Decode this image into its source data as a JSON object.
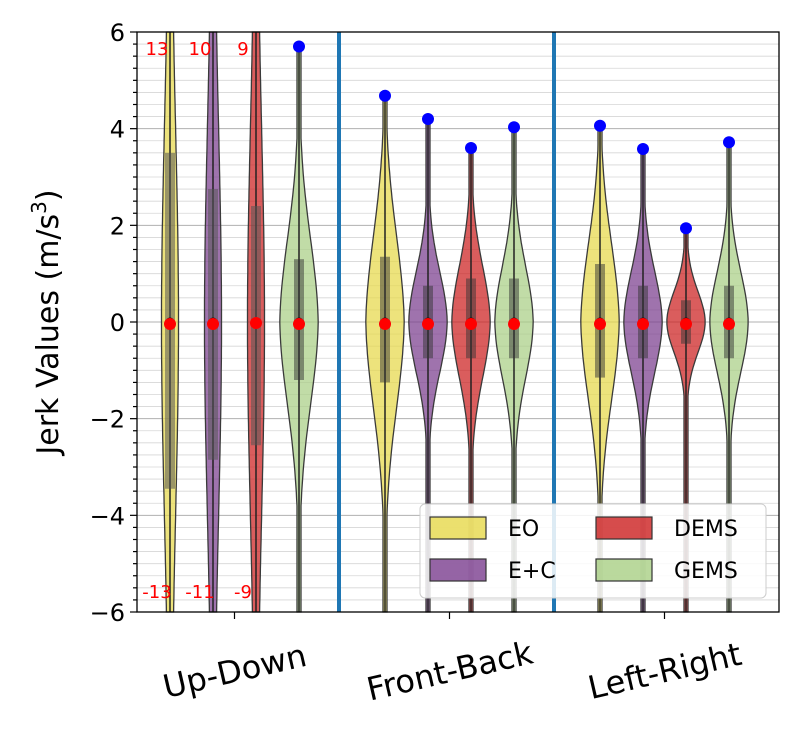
{
  "chart_data": {
    "type": "violin",
    "ylabel": "Jerk Values (m/s³)",
    "ylim": [
      -6,
      6
    ],
    "yticks": [
      -6,
      -4,
      -2,
      0,
      2,
      4,
      6
    ],
    "yticks_minor_step": 0.25,
    "grid": true,
    "categories": [
      "Up-Down",
      "Front-Back",
      "Left-Right"
    ],
    "legend": {
      "placement": "lower-right",
      "columns": 2
    },
    "series": [
      {
        "name": "EO",
        "color": "#e6d84a"
      },
      {
        "name": "E+C",
        "color": "#7a3d8e"
      },
      {
        "name": "DEMS",
        "color": "#cc1f1f"
      },
      {
        "name": "GEMS",
        "color": "#a9cf85"
      }
    ],
    "groups": [
      {
        "category": "Up-Down",
        "violins": [
          {
            "series": "EO",
            "q1": -3.45,
            "q3": 3.5,
            "mean": 0.0,
            "median": 0.0,
            "outlier_max": null,
            "dense": true,
            "clip_top": "13",
            "clip_bottom": "-13"
          },
          {
            "series": "E+C",
            "q1": -2.85,
            "q3": 2.75,
            "mean": 0.0,
            "median": 0.0,
            "outlier_max": null,
            "dense": true,
            "clip_top": "10",
            "clip_bottom": "-11"
          },
          {
            "series": "DEMS",
            "q1": -2.55,
            "q3": 2.4,
            "mean": 0.02,
            "median": 0.0,
            "outlier_max": null,
            "dense": true,
            "clip_top": "9",
            "clip_bottom": "-9"
          },
          {
            "series": "GEMS",
            "q1": -1.2,
            "q3": 1.3,
            "mean": 0.0,
            "median": 0.0,
            "outlier_max": 5.7,
            "dense": false
          }
        ]
      },
      {
        "category": "Front-Back",
        "violins": [
          {
            "series": "EO",
            "q1": -1.25,
            "q3": 1.35,
            "mean": 0.0,
            "median": 0.0,
            "outlier_max": 4.68
          },
          {
            "series": "E+C",
            "q1": -0.75,
            "q3": 0.75,
            "mean": 0.0,
            "median": 0.0,
            "outlier_max": 4.2
          },
          {
            "series": "DEMS",
            "q1": -0.75,
            "q3": 0.9,
            "mean": 0.0,
            "median": 0.0,
            "outlier_max": 3.6
          },
          {
            "series": "GEMS",
            "q1": -0.75,
            "q3": 0.9,
            "mean": 0.0,
            "median": 0.0,
            "outlier_max": 4.03
          }
        ]
      },
      {
        "category": "Left-Right",
        "violins": [
          {
            "series": "EO",
            "q1": -1.15,
            "q3": 1.2,
            "mean": 0.0,
            "median": 0.0,
            "outlier_max": 4.06
          },
          {
            "series": "E+C",
            "q1": -0.75,
            "q3": 0.75,
            "mean": 0.0,
            "median": 0.0,
            "outlier_max": 3.58
          },
          {
            "series": "DEMS",
            "q1": -0.45,
            "q3": 0.45,
            "mean": 0.0,
            "median": 0.0,
            "outlier_max": 1.94
          },
          {
            "series": "GEMS",
            "q1": -0.75,
            "q3": 0.75,
            "mean": 0.0,
            "median": 0.0,
            "outlier_max": 3.72
          }
        ]
      }
    ],
    "mean_marker_color": "#ff0000",
    "outlier_marker_color": "#0000ff",
    "separator_color": "#1f77b4"
  }
}
